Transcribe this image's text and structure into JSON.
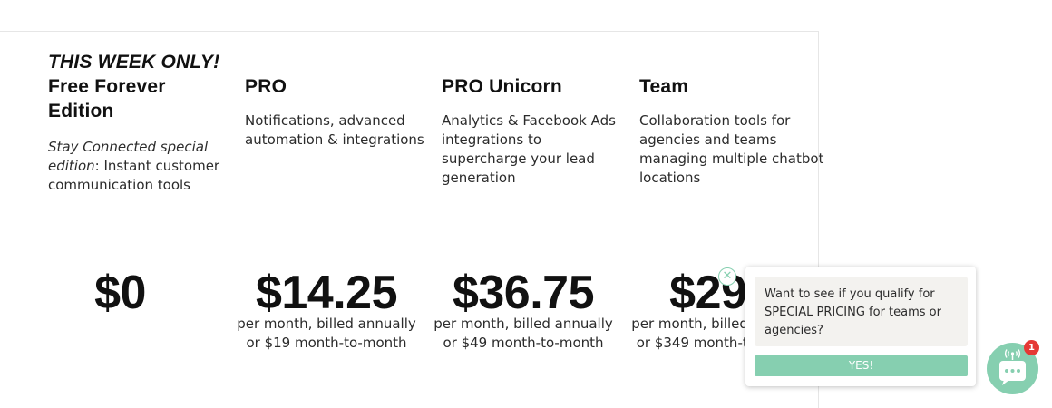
{
  "plans": [
    {
      "title_promo": "THIS WEEK ONLY!",
      "title_rest": "Free Forever Edition",
      "desc_italic": "Stay Connected special edition",
      "desc_rest": ": Instant customer communication tools",
      "price": "$0",
      "billing": ""
    },
    {
      "title": "PRO",
      "desc": "Notifications, advanced automation & integrations",
      "price": "$14.25",
      "billing": "per month, billed annually or $19 month-to-month"
    },
    {
      "title": "PRO Unicorn",
      "desc": "Analytics & Facebook Ads integrations to supercharge your lead generation",
      "price": "$36.75",
      "billing": "per month, billed annually or $49 month-to-month"
    },
    {
      "title": "Team",
      "desc": "Collaboration tools for agencies and teams managing multiple chatbot locations",
      "price": "$299",
      "billing": "per month, billed annually or $349 month-to-month"
    }
  ],
  "chat": {
    "message": "Want to see if you qualify for SPECIAL PRICING for teams or agencies?",
    "yes_label": "YES!",
    "badge_count": "1",
    "close_symbol": "✕",
    "accent_color": "#86cfb0",
    "badge_color": "#e53935",
    "launcher_icon": "chat-bubble-broadcast-icon"
  }
}
